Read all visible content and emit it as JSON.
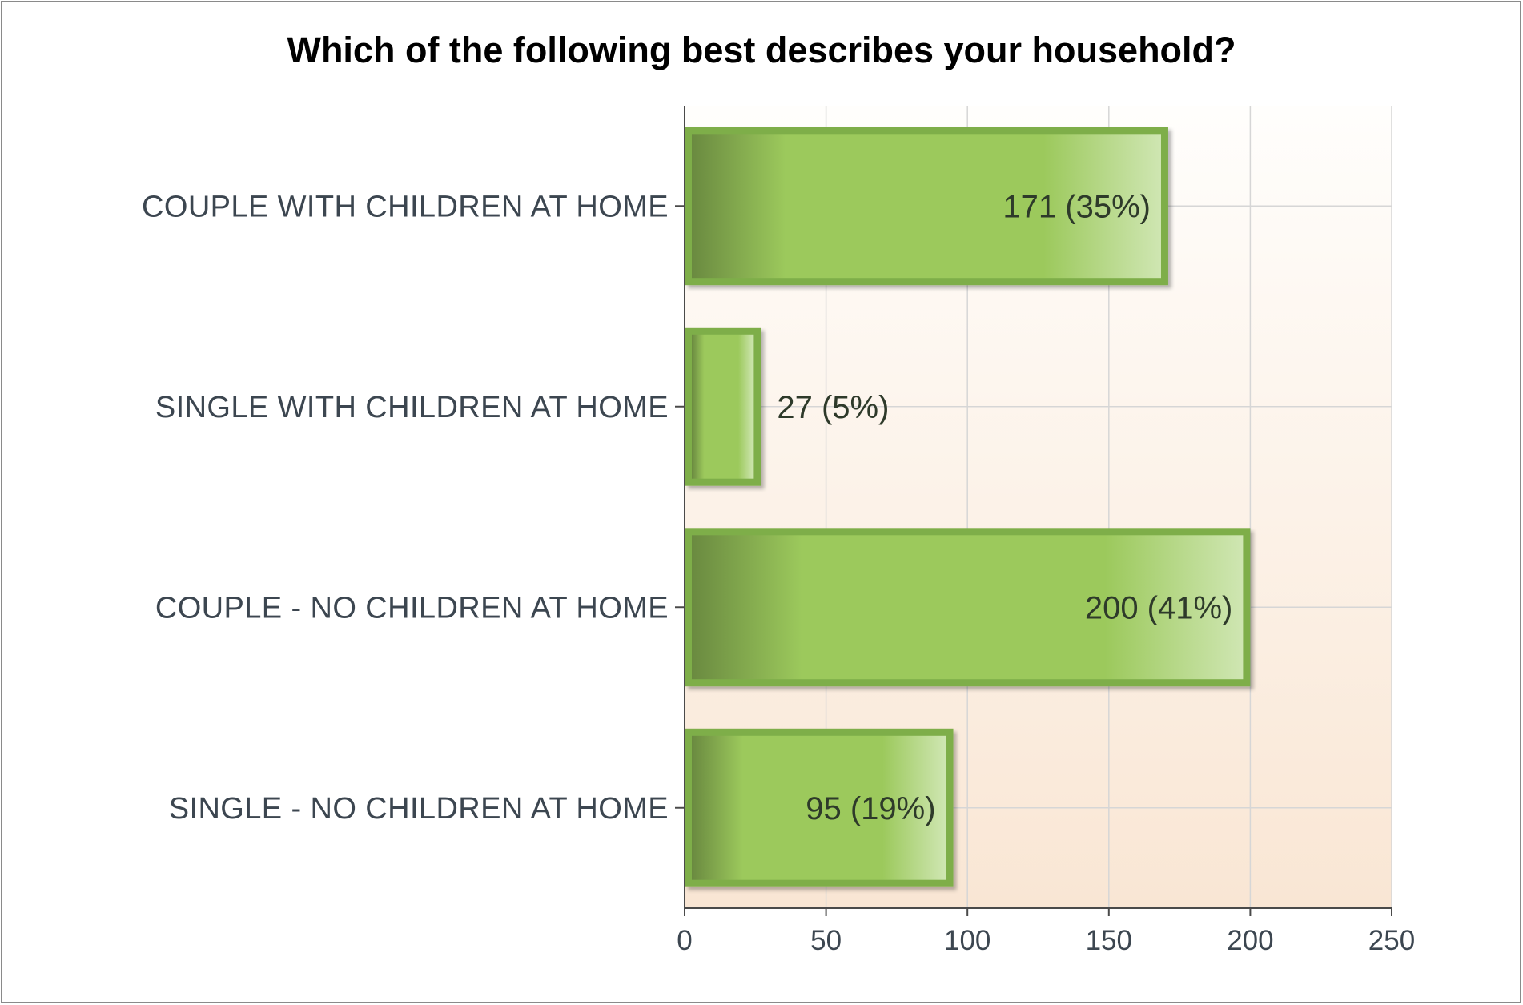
{
  "chart_data": {
    "type": "bar",
    "orientation": "horizontal",
    "title": "Which of the following best describes your household?",
    "categories": [
      "COUPLE  WITH  CHILDREN  AT  HOME",
      "SINGLE  WITH  CHILDREN  AT  HOME",
      "COUPLE  -  NO  CHILDREN  AT  HOME",
      "SINGLE  -  NO  CHILDREN  AT  HOME"
    ],
    "values": [
      171,
      27,
      200,
      95
    ],
    "percents": [
      "35%",
      "5%",
      "41%",
      "19%"
    ],
    "data_labels": [
      "171 (35%)",
      "27 (5%)",
      "200 (41%)",
      "95 (19%)"
    ],
    "xlabel": "",
    "ylabel": "",
    "xlim": [
      0,
      250
    ],
    "xticks": [
      0,
      50,
      100,
      150,
      200,
      250
    ],
    "grid": true,
    "legend": "none",
    "colors": {
      "bar_dark": "#6a8a40",
      "bar_mid": "#9cc95c",
      "bar_light": "#cfe6b2",
      "bar_border": "#7eae48",
      "plot_bg_top": "#fffefc",
      "plot_bg_bottom": "#f9e6d4",
      "grid": "#d6d6d6",
      "axis": "#4a4a4a"
    }
  }
}
